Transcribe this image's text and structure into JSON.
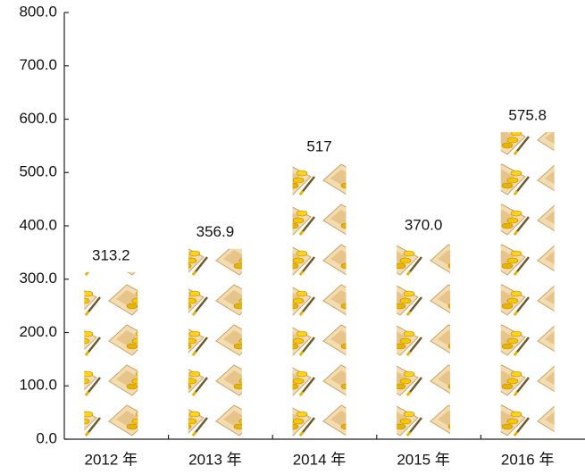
{
  "chart_data": {
    "type": "pictograph",
    "categories": [
      "2012 年",
      "2013 年",
      "2014 年",
      "2015 年",
      "2016 年"
    ],
    "values": [
      313.2,
      356.9,
      517,
      370.0,
      575.8
    ],
    "value_labels": [
      "313.2",
      "356.9",
      "517",
      "370.0",
      "575.8"
    ],
    "ylim": [
      0,
      800
    ],
    "yticks": [
      {
        "value": 0,
        "label": "0.0"
      },
      {
        "value": 100,
        "label": "100.0"
      },
      {
        "value": 200,
        "label": "200.0"
      },
      {
        "value": 300,
        "label": "300.0"
      },
      {
        "value": 400,
        "label": "400.0"
      },
      {
        "value": 500,
        "label": "500.0"
      },
      {
        "value": 600,
        "label": "600.0"
      },
      {
        "value": 700,
        "label": "700.0"
      },
      {
        "value": 800,
        "label": "800.0"
      }
    ]
  }
}
